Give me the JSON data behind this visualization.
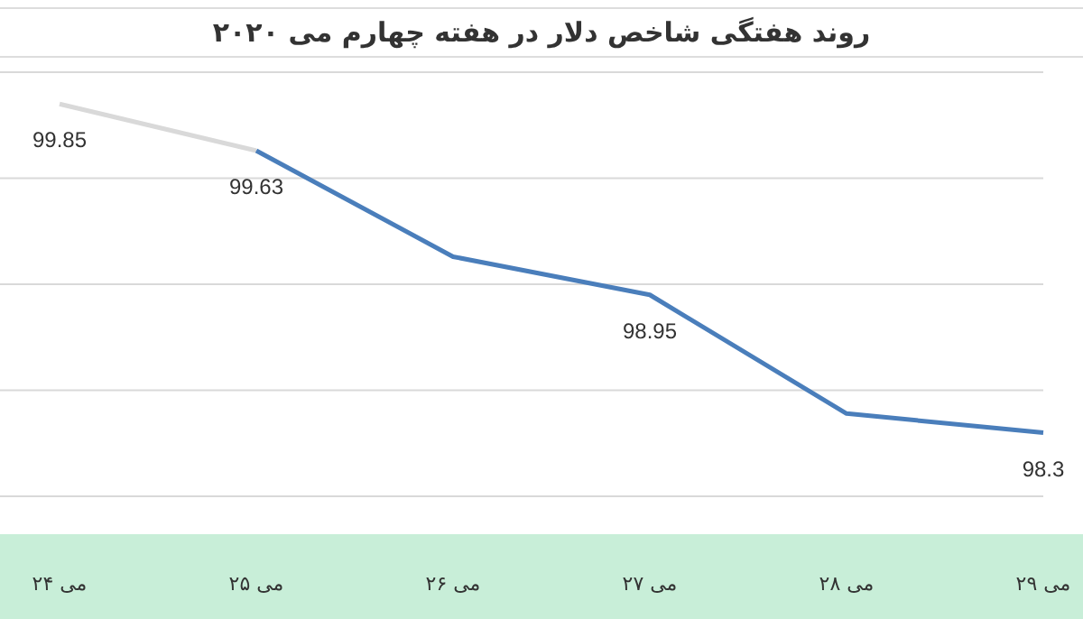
{
  "chart_data": {
    "type": "line",
    "title": "روند هفتگی شاخص دلار در هفته چهارم می ۲۰۲۰",
    "categories": [
      "۲۴ می",
      "۲۵ می",
      "۲۶ می",
      "۲۷ می",
      "۲۸ می",
      "۲۹ می"
    ],
    "series": [
      {
        "color": "#d9d9d9",
        "values": [
          99.85,
          99.63,
          null,
          null,
          null,
          null
        ],
        "value_labels": [
          "99.85",
          null,
          null,
          null,
          null,
          null
        ]
      },
      {
        "color": "#4a7ebb",
        "values": [
          null,
          99.63,
          99.13,
          98.95,
          98.39,
          98.3
        ],
        "value_labels": [
          null,
          "99.63",
          null,
          "98.95",
          null,
          "98.3"
        ]
      }
    ],
    "ylim": [
      98,
      100
    ],
    "yticks": [
      {
        "value": 98,
        "label": null
      },
      {
        "value": 98.5,
        "label": null
      },
      {
        "value": 99,
        "label": null
      },
      {
        "value": 99.5,
        "label": null
      },
      {
        "value": 100,
        "label": null
      }
    ],
    "tick_labels": "x",
    "grid": "y",
    "marker": "none",
    "line_style": "solid"
  }
}
